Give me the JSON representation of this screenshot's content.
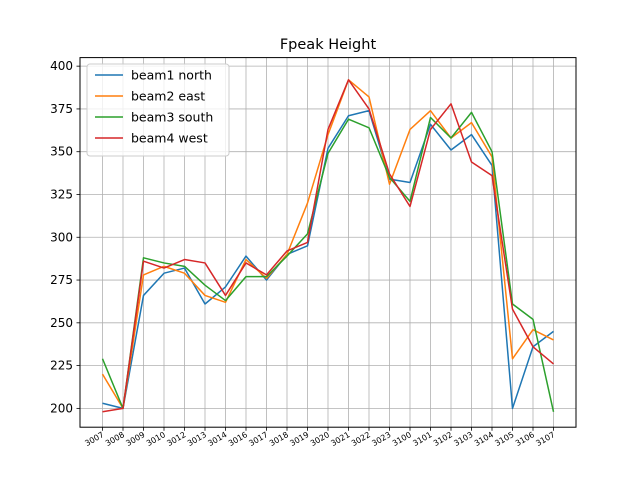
{
  "chart_data": {
    "type": "line",
    "title": "Fpeak Height",
    "xlabel": "",
    "ylabel": "",
    "ylim": [
      189,
      405
    ],
    "yticks": [
      200,
      225,
      250,
      275,
      300,
      325,
      350,
      375,
      400
    ],
    "grid": true,
    "legend_position": "top-left",
    "categories": [
      "3007",
      "3008",
      "3009",
      "3010",
      "3012",
      "3013",
      "3014",
      "3016",
      "3017",
      "3018",
      "3019",
      "3020",
      "3021",
      "3022",
      "3023",
      "3100",
      "3101",
      "3102",
      "3103",
      "3104",
      "3105",
      "3106",
      "3107"
    ],
    "series": [
      {
        "name": "beam1 north",
        "color": "#1f77b4",
        "values": [
          203,
          200,
          266,
          279,
          282,
          261,
          271,
          289,
          275,
          290,
          295,
          352,
          371,
          374,
          334,
          332,
          366,
          351,
          360,
          342,
          200,
          236,
          245
        ]
      },
      {
        "name": "beam2 east",
        "color": "#ff7f0e",
        "values": [
          220,
          200,
          278,
          283,
          279,
          266,
          262,
          287,
          276,
          290,
          320,
          360,
          392,
          382,
          331,
          363,
          374,
          358,
          367,
          347,
          229,
          246,
          240
        ]
      },
      {
        "name": "beam3 south",
        "color": "#2ca02c",
        "values": [
          229,
          200,
          288,
          285,
          283,
          272,
          263,
          277,
          277,
          289,
          302,
          349,
          369,
          364,
          335,
          321,
          370,
          358,
          373,
          350,
          261,
          252,
          198
        ]
      },
      {
        "name": "beam4 west",
        "color": "#d62728",
        "values": [
          198,
          200,
          286,
          282,
          287,
          285,
          266,
          285,
          278,
          292,
          297,
          363,
          392,
          375,
          337,
          318,
          363,
          378,
          344,
          336,
          258,
          236,
          226
        ]
      }
    ]
  }
}
